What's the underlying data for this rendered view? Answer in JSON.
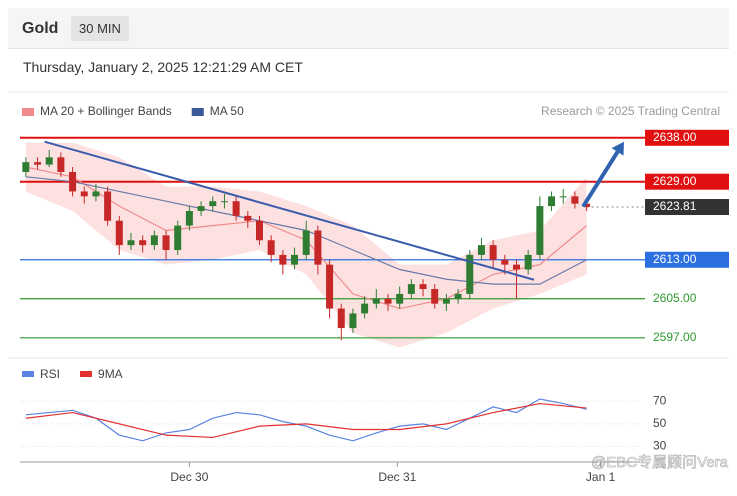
{
  "header": {
    "title": "Gold",
    "interval": "30 MIN",
    "timestamp": "Thursday, January 2, 2025 12:21:29 AM CET",
    "watermark": "@EBC专属顾问Vera"
  },
  "chart_data": [
    {
      "type": "candlestick",
      "source": "Research © 2025 Trading Central",
      "xlim": [
        -0.5,
        53
      ],
      "ylim": [
        2594.5,
        2639.6
      ],
      "up_color": "#2e7d32",
      "down_color": "#c62828",
      "candles": [
        [
          2631,
          2634,
          2630,
          2633
        ],
        [
          2633,
          2634,
          2631.5,
          2632.5
        ],
        [
          2632.5,
          2635.5,
          2632,
          2634
        ],
        [
          2634,
          2635,
          2630,
          2631
        ],
        [
          2631,
          2632,
          2626,
          2627
        ],
        [
          2627,
          2628,
          2624.5,
          2626
        ],
        [
          2626,
          2628.5,
          2625,
          2627
        ],
        [
          2627,
          2628,
          2620,
          2621
        ],
        [
          2621,
          2622,
          2614,
          2616
        ],
        [
          2616,
          2618.5,
          2615,
          2617
        ],
        [
          2617,
          2618,
          2614.5,
          2616
        ],
        [
          2616,
          2619,
          2615,
          2618
        ],
        [
          2618,
          2619,
          2613,
          2615
        ],
        [
          2615,
          2621,
          2614,
          2620
        ],
        [
          2620,
          2624,
          2619,
          2623
        ],
        [
          2623,
          2625,
          2622,
          2624
        ],
        [
          2624,
          2626,
          2623,
          2625
        ],
        [
          2625,
          2626.5,
          2623.5,
          2625
        ],
        [
          2625,
          2626,
          2621,
          2622
        ],
        [
          2622,
          2623,
          2619.5,
          2621
        ],
        [
          2621,
          2622,
          2616,
          2617
        ],
        [
          2617,
          2618,
          2612.5,
          2614
        ],
        [
          2614,
          2615,
          2610,
          2612
        ],
        [
          2612,
          2615.5,
          2611,
          2614
        ],
        [
          2614,
          2621,
          2613,
          2619
        ],
        [
          2619,
          2620,
          2610,
          2612
        ],
        [
          2612,
          2613,
          2601,
          2603
        ],
        [
          2603,
          2604,
          2596.5,
          2599
        ],
        [
          2599,
          2603,
          2598,
          2602
        ],
        [
          2602,
          2605.5,
          2601,
          2604
        ],
        [
          2604,
          2607,
          2603,
          2605
        ],
        [
          2605,
          2606,
          2602.5,
          2604
        ],
        [
          2604,
          2607.5,
          2603,
          2606
        ],
        [
          2606,
          2609,
          2605,
          2608
        ],
        [
          2608,
          2609,
          2605.5,
          2607
        ],
        [
          2607,
          2608,
          2603,
          2604
        ],
        [
          2604,
          2606,
          2602.5,
          2605
        ],
        [
          2605,
          2607,
          2604,
          2606
        ],
        [
          2606,
          2615,
          2605,
          2614
        ],
        [
          2614,
          2617.5,
          2613,
          2616
        ],
        [
          2616,
          2617,
          2611.5,
          2613
        ],
        [
          2613,
          2614,
          2610,
          2612
        ],
        [
          2612,
          2613,
          2605,
          2611
        ],
        [
          2611,
          2615,
          2610,
          2614
        ],
        [
          2614,
          2626,
          2613,
          2624
        ],
        [
          2624,
          2627,
          2623,
          2626
        ],
        [
          2626,
          2627.5,
          2624.5,
          2626
        ],
        [
          2626,
          2627,
          2623.5,
          2624.5
        ],
        [
          2624.5,
          2625,
          2623,
          2623.81
        ]
      ],
      "series": [
        {
          "name": "MA 20 + Bollinger Bands",
          "color": "#f08a8a",
          "band_color": "#fde1e1",
          "x": [
            0,
            4,
            8,
            12,
            16,
            20,
            24,
            28,
            32,
            36,
            40,
            44,
            48
          ],
          "values": [
            2632,
            2630,
            2624,
            2619,
            2620,
            2621,
            2617,
            2606,
            2603,
            2605,
            2610,
            2612,
            2620
          ],
          "upper": [
            2637,
            2637,
            2634,
            2628,
            2628,
            2627,
            2624,
            2620,
            2612,
            2612,
            2617,
            2619,
            2630
          ],
          "lower": [
            2627,
            2623,
            2615,
            2612,
            2613,
            2615,
            2610,
            2598,
            2595,
            2598,
            2603,
            2606,
            2610
          ]
        },
        {
          "name": "MA 50",
          "color": "#3b5998",
          "line_color": "#6a7aa8",
          "x": [
            0,
            4,
            8,
            12,
            16,
            20,
            24,
            28,
            32,
            36,
            40,
            44,
            48
          ],
          "values": [
            2630,
            2629,
            2627,
            2625,
            2623,
            2621,
            2619,
            2615,
            2611,
            2609,
            2608,
            2608,
            2613
          ]
        }
      ],
      "trendline": {
        "color": "#3b5bab",
        "x": [
          1.6,
          43.5
        ],
        "y": [
          2637.2,
          2608.9
        ]
      },
      "arrow": {
        "color": "#2f63b0",
        "x": [
          47.7,
          51.2
        ],
        "y": [
          2623.9,
          2637.2
        ]
      },
      "levels": [
        {
          "value": 2638,
          "label": "2638.00",
          "color": "#e01010",
          "box": true,
          "dashed": false
        },
        {
          "value": 2629,
          "label": "2629.00",
          "color": "#e01010",
          "box": true,
          "dashed": false
        },
        {
          "value": 2623.81,
          "label": "2623.81",
          "color": "#333333",
          "box": true,
          "dashed": true
        },
        {
          "value": 2613,
          "label": "2613.00",
          "color": "#2b6fe0",
          "box": true,
          "dashed": false
        },
        {
          "value": 2605,
          "label": "2605.00",
          "color": "#2e9a2e",
          "box": false,
          "dashed": false
        },
        {
          "value": 2597,
          "label": "2597.00",
          "color": "#2e9a2e",
          "box": false,
          "dashed": false
        }
      ]
    },
    {
      "type": "line",
      "xlim": [
        -0.5,
        53
      ],
      "ylim": [
        18,
        80
      ],
      "yticks": [
        30,
        50,
        70
      ],
      "xticks": [
        {
          "value": 14,
          "label": "Dec 30"
        },
        {
          "value": 31.8,
          "label": "Dec 31"
        },
        {
          "value": 49.2,
          "label": "Jan 1"
        }
      ],
      "series": [
        {
          "name": "RSI",
          "color": "#5b84e0",
          "x": [
            0,
            2,
            4,
            6,
            8,
            10,
            12,
            14,
            16,
            18,
            20,
            22,
            24,
            26,
            28,
            30,
            32,
            34,
            36,
            38,
            40,
            42,
            44,
            46,
            48
          ],
          "values": [
            58,
            60,
            62,
            55,
            40,
            35,
            42,
            45,
            55,
            60,
            58,
            52,
            48,
            40,
            35,
            42,
            48,
            50,
            45,
            55,
            65,
            60,
            72,
            68,
            63
          ]
        },
        {
          "name": "9MA",
          "color": "#e53030",
          "x": [
            0,
            4,
            8,
            12,
            16,
            20,
            24,
            28,
            32,
            36,
            40,
            44,
            48
          ],
          "values": [
            55,
            60,
            50,
            40,
            38,
            48,
            50,
            45,
            45,
            50,
            60,
            68,
            64
          ]
        }
      ]
    }
  ]
}
